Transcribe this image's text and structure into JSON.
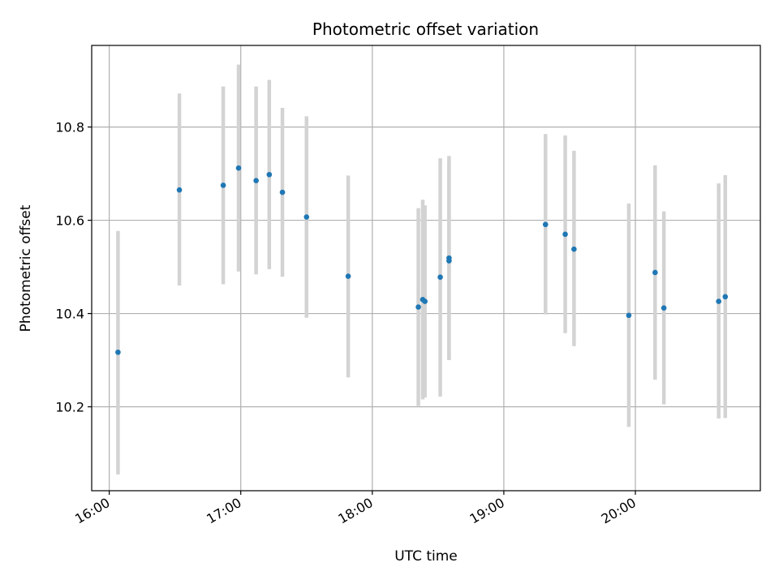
{
  "chart_data": {
    "type": "scatter",
    "title": "Photometric offset variation",
    "xlabel": "UTC time",
    "ylabel": "Photometric offset",
    "x_axis_type": "time",
    "xlim": [
      "15:52",
      "20:57"
    ],
    "ylim": [
      10.02,
      10.975
    ],
    "x_ticks": [
      "16:00",
      "17:00",
      "18:00",
      "19:00",
      "20:00"
    ],
    "y_ticks": [
      10.2,
      10.4,
      10.6,
      10.8
    ],
    "y_tick_labels": [
      "10.2",
      "10.4",
      "10.6",
      "10.8"
    ],
    "grid": true,
    "x_tick_rotation": "30deg",
    "colors": {
      "point": "#1f77b4",
      "errorbar": "#d3d3d3",
      "grid": "#b0b0b0"
    },
    "points": [
      {
        "time": "16:04",
        "y": 10.317,
        "yerr_low": 10.055,
        "yerr_high": 10.577
      },
      {
        "time": "16:32",
        "y": 10.665,
        "yerr_low": 10.46,
        "yerr_high": 10.872
      },
      {
        "time": "16:52",
        "y": 10.675,
        "yerr_low": 10.463,
        "yerr_high": 10.887
      },
      {
        "time": "16:59",
        "y": 10.712,
        "yerr_low": 10.49,
        "yerr_high": 10.934
      },
      {
        "time": "17:07",
        "y": 10.685,
        "yerr_low": 10.484,
        "yerr_high": 10.887
      },
      {
        "time": "17:13",
        "y": 10.698,
        "yerr_low": 10.495,
        "yerr_high": 10.901
      },
      {
        "time": "17:19",
        "y": 10.66,
        "yerr_low": 10.479,
        "yerr_high": 10.841
      },
      {
        "time": "17:30",
        "y": 10.607,
        "yerr_low": 10.391,
        "yerr_high": 10.823
      },
      {
        "time": "17:49",
        "y": 10.48,
        "yerr_low": 10.263,
        "yerr_high": 10.696
      },
      {
        "time": "18:21",
        "y": 10.414,
        "yerr_low": 10.202,
        "yerr_high": 10.626
      },
      {
        "time": "18:23",
        "y": 10.43,
        "yerr_low": 10.216,
        "yerr_high": 10.644
      },
      {
        "time": "18:24",
        "y": 10.426,
        "yerr_low": 10.22,
        "yerr_high": 10.632
      },
      {
        "time": "18:31",
        "y": 10.478,
        "yerr_low": 10.222,
        "yerr_high": 10.733
      },
      {
        "time": "18:35",
        "y": 10.519,
        "yerr_low": 10.3,
        "yerr_high": 10.738
      },
      {
        "time": "18:35",
        "y": 10.513,
        "yerr_low": 10.3,
        "yerr_high": 10.726
      },
      {
        "time": "19:19",
        "y": 10.591,
        "yerr_low": 10.398,
        "yerr_high": 10.785
      },
      {
        "time": "19:28",
        "y": 10.57,
        "yerr_low": 10.358,
        "yerr_high": 10.782
      },
      {
        "time": "19:32",
        "y": 10.538,
        "yerr_low": 10.33,
        "yerr_high": 10.749
      },
      {
        "time": "19:57",
        "y": 10.396,
        "yerr_low": 10.157,
        "yerr_high": 10.636
      },
      {
        "time": "20:09",
        "y": 10.488,
        "yerr_low": 10.258,
        "yerr_high": 10.718
      },
      {
        "time": "20:13",
        "y": 10.412,
        "yerr_low": 10.205,
        "yerr_high": 10.619
      },
      {
        "time": "20:38",
        "y": 10.426,
        "yerr_low": 10.175,
        "yerr_high": 10.679
      },
      {
        "time": "20:41",
        "y": 10.436,
        "yerr_low": 10.176,
        "yerr_high": 10.697
      }
    ]
  }
}
